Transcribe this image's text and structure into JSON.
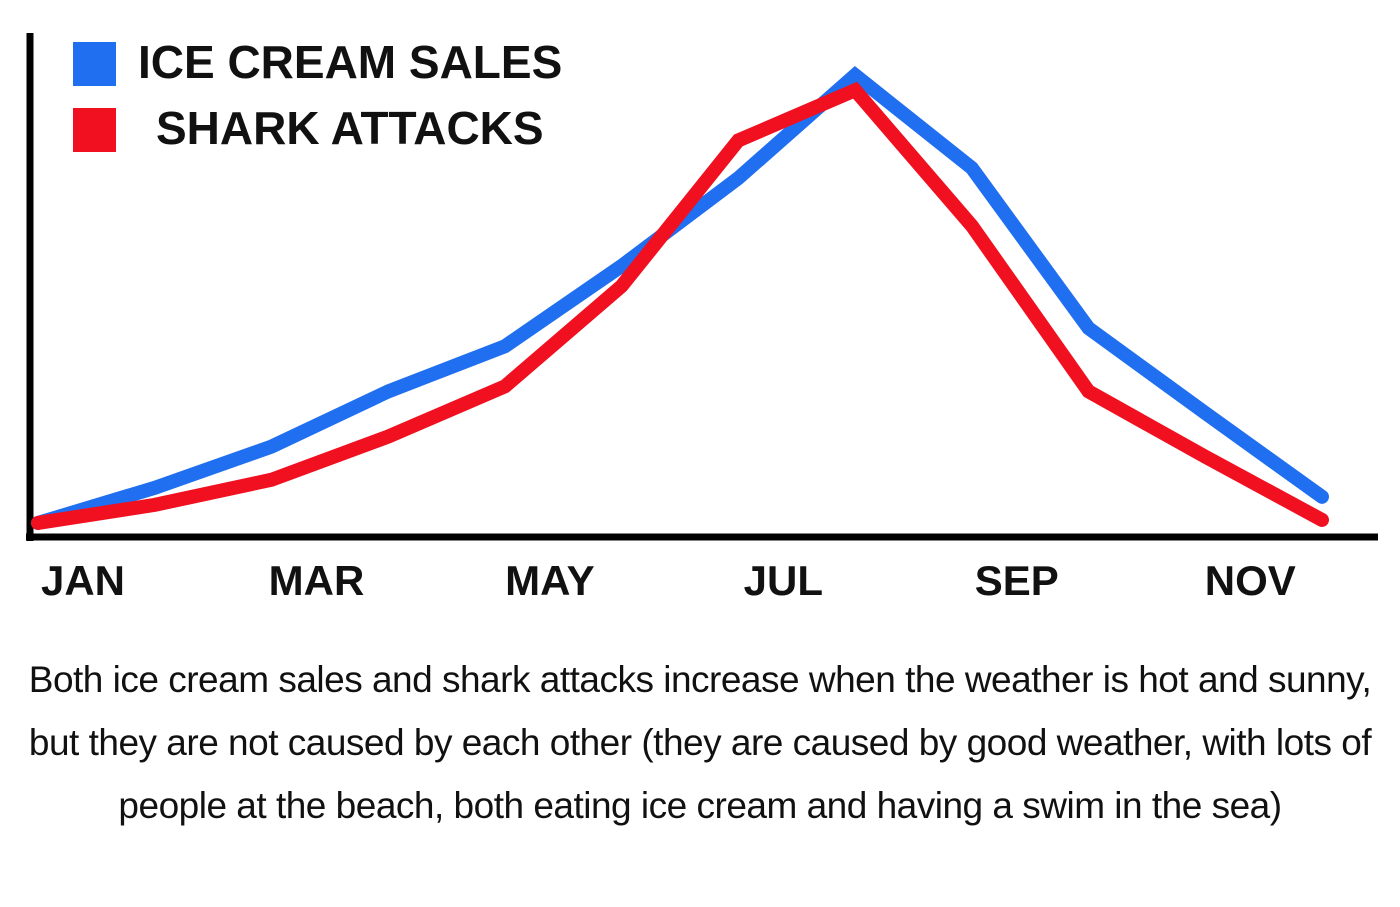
{
  "chart_data": {
    "type": "line",
    "categories": [
      "JAN",
      null,
      "MAR",
      null,
      "MAY",
      null,
      "JUL",
      null,
      "SEP",
      null,
      "NOV",
      null
    ],
    "series": [
      {
        "name": "ICE CREAM SALES",
        "color": "#1f6ff0",
        "values": [
          2.8,
          9.8,
          18,
          29,
          38,
          54,
          71.5,
          92,
          73.5,
          41.6,
          24.7,
          8
        ]
      },
      {
        "name": "SHARK ATTACKS",
        "color": "#f01020",
        "values": [
          2.8,
          6.4,
          11.4,
          20,
          30,
          50,
          79,
          89,
          62,
          29,
          16,
          3.4
        ]
      }
    ],
    "ylim": [
      0,
      100
    ],
    "caption": "Both ice cream sales and shark attacks increase when the weather is hot and sunny, but they are not caused by each other (they are caused by good weather, with lots of people at the beach, both eating ice cream and having a swim in the sea)"
  }
}
